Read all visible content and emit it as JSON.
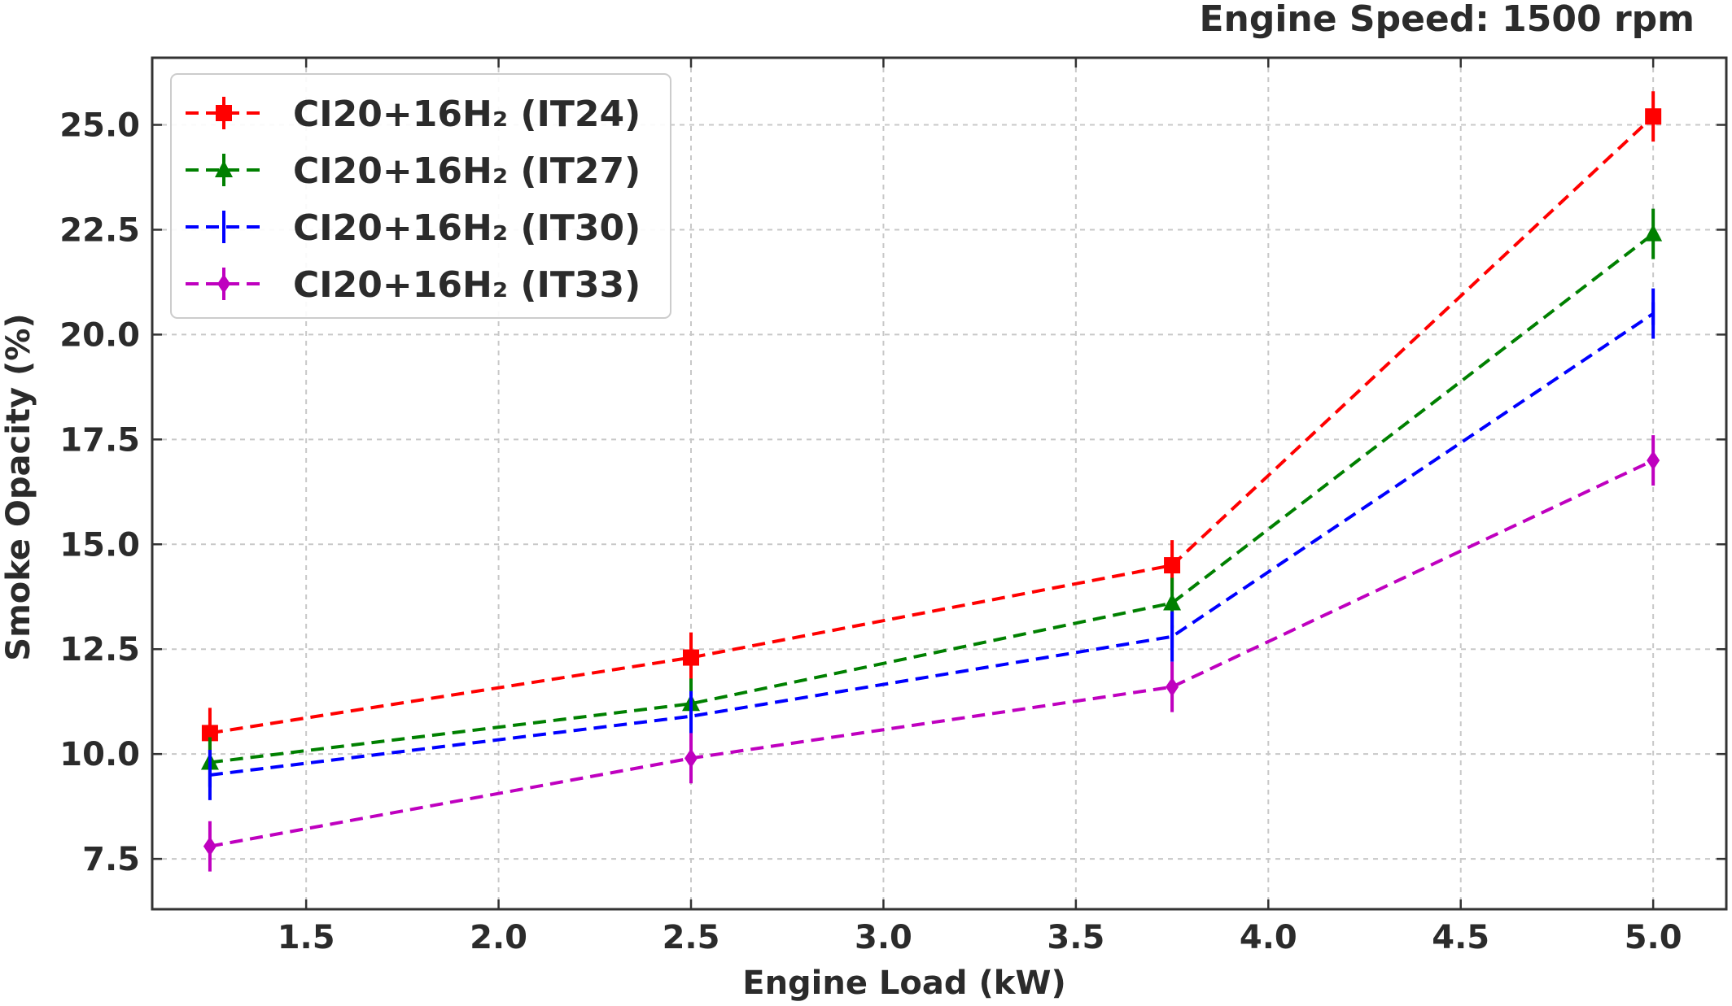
{
  "chart_data": {
    "type": "line",
    "title": "",
    "annotation": "Engine Speed: 1500 rpm",
    "xlabel": "Engine Load (kW)",
    "ylabel": "Smoke Opacity (%)",
    "xlim": [
      1.1,
      5.19
    ],
    "ylim": [
      6.3,
      26.6
    ],
    "xticks": [
      1.5,
      2.0,
      2.5,
      3.0,
      3.5,
      4.0,
      4.5,
      5.0
    ],
    "xtick_labels": [
      "1.5",
      "2.0",
      "2.5",
      "3.0",
      "3.5",
      "4.0",
      "4.5",
      "5.0"
    ],
    "yticks": [
      7.5,
      10.0,
      12.5,
      15.0,
      17.5,
      20.0,
      22.5,
      25.0
    ],
    "ytick_labels": [
      "7.5",
      "10.0",
      "12.5",
      "15.0",
      "17.5",
      "20.0",
      "22.5",
      "25.0"
    ],
    "grid": true,
    "legend_position": "top-left",
    "x": [
      1.25,
      2.5,
      3.75,
      5.0
    ],
    "series": [
      {
        "name": "CI20+16H₂ (IT24)",
        "color": "#ff0000",
        "marker": "square",
        "values": [
          10.5,
          12.3,
          14.5,
          25.2
        ],
        "errors": [
          0.6,
          0.6,
          0.6,
          0.6
        ]
      },
      {
        "name": "CI20+16H₂ (IT27)",
        "color": "#008000",
        "marker": "triangle",
        "values": [
          9.8,
          11.2,
          13.6,
          22.4
        ],
        "errors": [
          0.6,
          0.6,
          0.6,
          0.6
        ]
      },
      {
        "name": "CI20+16H₂ (IT30)",
        "color": "#0000ff",
        "marker": "vline",
        "values": [
          9.5,
          10.9,
          12.8,
          20.5
        ],
        "errors": [
          0.6,
          0.6,
          0.6,
          0.6
        ]
      },
      {
        "name": "CI20+16H₂ (IT33)",
        "color": "#bf00bf",
        "marker": "diamond",
        "values": [
          7.8,
          9.9,
          11.6,
          17.0
        ],
        "errors": [
          0.6,
          0.6,
          0.6,
          0.6
        ]
      }
    ]
  }
}
